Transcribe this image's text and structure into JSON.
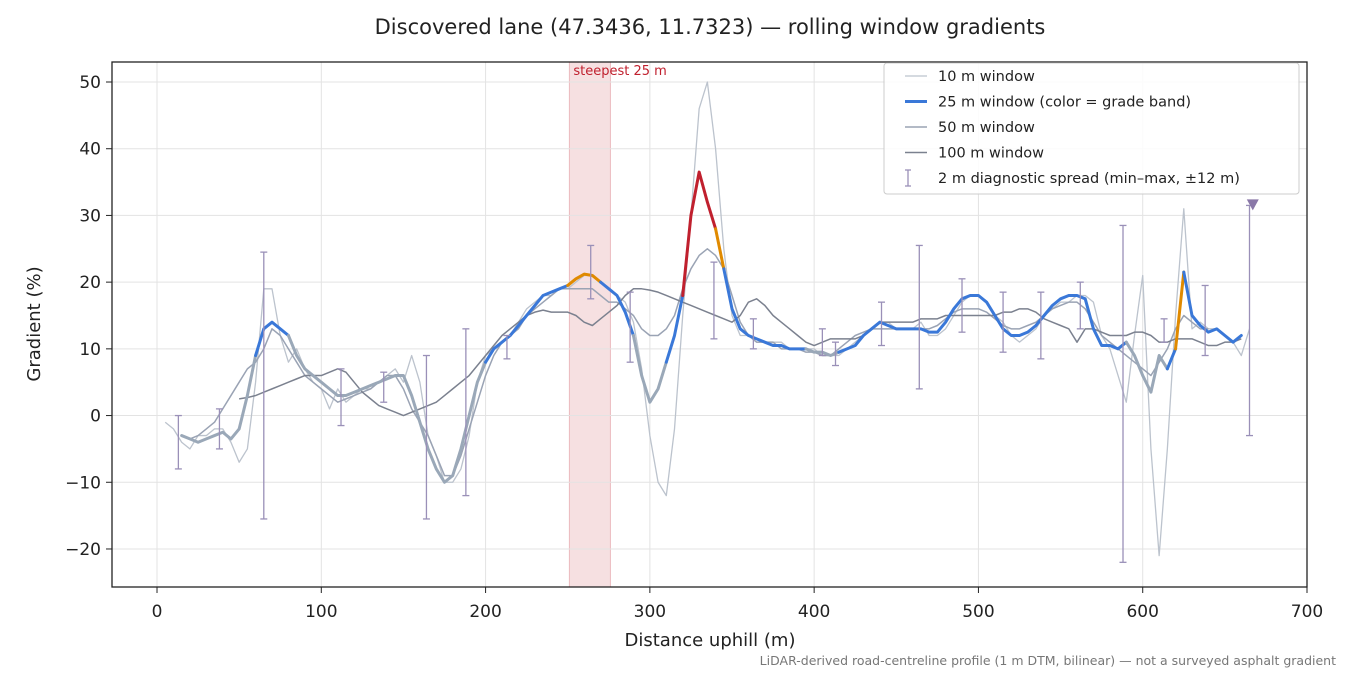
{
  "chart_data": {
    "type": "line",
    "title": "Discovered lane (47.3436, 11.7323) — rolling window gradients",
    "xlabel": "Distance uphill (m)",
    "ylabel": "Gradient (%)",
    "note": "LiDAR-derived road-centreline profile (1 m DTM, bilinear) — not a surveyed asphalt gradient",
    "xlim": [
      -27.4,
      700
    ],
    "ylim": [
      -25.7,
      53
    ],
    "xticks": [
      0,
      100,
      200,
      300,
      400,
      500,
      600,
      700
    ],
    "yticks": [
      {
        "value": -20,
        "label": "−20"
      },
      {
        "value": -10,
        "label": "−10"
      },
      0,
      10,
      20,
      30,
      40,
      50
    ],
    "grid": true,
    "legend": "upper right",
    "x": [
      5,
      10,
      15,
      20,
      25,
      30,
      35,
      40,
      45,
      50,
      55,
      60,
      65,
      70,
      75,
      80,
      85,
      90,
      95,
      100,
      105,
      110,
      115,
      120,
      125,
      130,
      135,
      140,
      145,
      150,
      155,
      160,
      165,
      170,
      175,
      180,
      185,
      190,
      195,
      200,
      205,
      210,
      215,
      220,
      225,
      230,
      235,
      240,
      245,
      250,
      255,
      260,
      265,
      270,
      275,
      280,
      285,
      290,
      295,
      300,
      305,
      310,
      315,
      320,
      325,
      330,
      335,
      340,
      345,
      350,
      355,
      360,
      365,
      370,
      375,
      380,
      385,
      390,
      395,
      400,
      405,
      410,
      415,
      420,
      425,
      430,
      435,
      440,
      445,
      450,
      455,
      460,
      465,
      470,
      475,
      480,
      485,
      490,
      495,
      500,
      505,
      510,
      515,
      520,
      525,
      530,
      535,
      540,
      545,
      550,
      555,
      560,
      565,
      570,
      575,
      580,
      585,
      590,
      595,
      600,
      605,
      610,
      615,
      620,
      625,
      630,
      635,
      640,
      645,
      650,
      655,
      660,
      665
    ],
    "series": [
      {
        "name": "10 m window",
        "color": "#bcc3cd",
        "width": 1.3,
        "values": [
          -1,
          -2,
          -4,
          -5,
          -3,
          -3,
          -2,
          -2,
          -4,
          -7,
          -5,
          5,
          19,
          19,
          12,
          8,
          10,
          7,
          5,
          4,
          1,
          4,
          2,
          3,
          4,
          4,
          5,
          6,
          7,
          5,
          9,
          5,
          -3,
          -6,
          -10,
          -10,
          -8,
          -3,
          5,
          9,
          10,
          11,
          12,
          14,
          16,
          17,
          18,
          18,
          19,
          19,
          20,
          21,
          21,
          20,
          19,
          18,
          17,
          14,
          7,
          -3,
          -10,
          -12,
          -2,
          15,
          30,
          46,
          50,
          40,
          25,
          15,
          12,
          12,
          11,
          11,
          11,
          11,
          10,
          10,
          10,
          10,
          9,
          9,
          9,
          10,
          11,
          12,
          13,
          14,
          14,
          13,
          13,
          13,
          14,
          12,
          12,
          13,
          15,
          17,
          18,
          18,
          17,
          15,
          14,
          12,
          11,
          12,
          13,
          15,
          16,
          17,
          17,
          18,
          18,
          17,
          12,
          10,
          6,
          2,
          12,
          21,
          -5,
          -21,
          -5,
          15,
          31,
          13,
          14,
          13,
          13,
          12,
          11,
          9,
          13
        ]
      },
      {
        "name": "25 m window (color = grade band)",
        "color": "#3a78d8",
        "width": 3,
        "banded": true,
        "values": [
          null,
          null,
          -3,
          -3.5,
          -4,
          -3.5,
          -3,
          -2.5,
          -3.5,
          -2,
          3,
          9,
          13,
          14,
          13,
          12,
          9,
          7,
          6,
          5,
          4,
          3,
          3,
          3.5,
          4,
          4.5,
          5,
          5.5,
          6,
          6,
          3,
          -1,
          -5,
          -8,
          -10,
          -9,
          -5,
          0,
          5,
          8,
          10,
          11,
          12,
          13.5,
          15,
          16.5,
          18,
          18.5,
          19,
          19.5,
          20.5,
          21.2,
          21,
          20,
          19,
          18,
          15.5,
          12,
          6,
          2,
          4,
          8,
          12,
          18,
          30,
          36.5,
          32,
          28,
          22,
          16,
          13,
          12,
          11.5,
          11,
          10.5,
          10.5,
          10,
          10,
          10,
          9.5,
          9.5,
          9,
          9.5,
          10,
          10.5,
          12,
          13,
          14,
          13.5,
          13,
          13,
          13,
          13,
          12.5,
          12.5,
          14,
          16,
          17.5,
          18,
          18,
          17,
          15,
          13,
          12,
          12,
          12.5,
          13.5,
          15,
          16.5,
          17.5,
          18,
          18,
          17.5,
          13,
          10.5,
          10.5,
          10,
          11,
          9,
          6,
          3.5,
          9,
          7,
          10,
          21.5,
          15,
          13.5,
          12.5,
          13,
          12,
          11,
          12,
          null
        ]
      },
      {
        "name": "50 m window",
        "color": "#9aa3b4",
        "width": 1.5,
        "values": [
          null,
          null,
          -3,
          -3.5,
          -3,
          -2,
          -1,
          1,
          3,
          5,
          7,
          8,
          10,
          13,
          12,
          10,
          8,
          6,
          5,
          4,
          3,
          2,
          2.5,
          3,
          3.5,
          4,
          5,
          6,
          6,
          4,
          1,
          -1,
          -3,
          -6,
          -9,
          -9,
          -6,
          -2,
          2,
          6,
          9,
          11,
          12,
          13,
          15,
          16,
          17,
          18,
          19,
          19,
          19,
          19,
          19,
          18,
          17,
          17,
          16,
          15,
          13,
          12,
          12,
          13,
          15,
          19,
          22,
          24,
          25,
          24,
          22,
          18,
          14,
          12,
          11,
          11,
          11,
          10,
          10,
          10,
          9.5,
          9.5,
          9,
          9,
          10,
          11,
          12,
          12.5,
          13,
          13,
          13,
          13,
          13,
          13,
          13,
          13,
          13.5,
          14.5,
          15.5,
          16,
          16,
          16,
          15.5,
          14.5,
          13.5,
          13,
          13,
          13.5,
          14,
          15,
          16,
          16.5,
          17,
          17,
          16,
          14,
          12,
          11,
          10,
          9,
          8,
          7,
          6,
          8,
          10,
          13,
          15,
          14,
          13,
          13,
          null,
          null,
          null,
          null,
          null
        ]
      },
      {
        "name": "100 m window",
        "color": "#7b818f",
        "width": 1.5,
        "values": [
          null,
          null,
          null,
          null,
          null,
          null,
          null,
          null,
          null,
          2.5,
          2.7,
          3,
          3.5,
          4,
          4.5,
          5,
          5.5,
          6,
          6,
          6,
          6.5,
          7,
          6.5,
          5,
          3.5,
          2.5,
          1.5,
          1,
          0.5,
          0,
          0.5,
          1,
          1.5,
          2,
          3,
          4,
          5,
          6,
          7.5,
          9,
          10.5,
          12,
          13,
          14,
          15,
          15.5,
          15.8,
          15.5,
          15.5,
          15.5,
          15,
          14,
          13.5,
          14.5,
          15.5,
          16.5,
          18,
          19,
          19,
          18.8,
          18.5,
          18,
          17.5,
          17,
          16.5,
          16,
          15.5,
          15,
          14.5,
          14,
          15,
          17,
          17.5,
          16.5,
          15,
          14,
          13,
          12,
          11,
          10.5,
          11,
          11.5,
          11.5,
          11.5,
          11.5,
          12,
          13,
          14,
          14,
          14,
          14,
          14,
          14.5,
          14.5,
          14.5,
          15,
          15,
          15,
          15,
          15,
          15,
          15,
          15.5,
          15.5,
          16,
          16,
          15.5,
          14.5,
          14,
          13.5,
          13,
          11,
          13,
          13,
          12.5,
          12,
          12,
          12,
          12.5,
          12.5,
          12,
          11,
          11,
          11.5,
          11.5,
          11.5,
          11,
          10.5,
          10.5,
          11,
          11,
          11.5,
          null
        ]
      }
    ],
    "grade_bands": {
      "thresholds": [
        10,
        20,
        25
      ],
      "colors": [
        "#9aa8b8",
        "#3a78d8",
        "#e08a00",
        "#c0202e"
      ]
    },
    "spread": {
      "name": "2 m diagnostic spread (min–max, ±12 m)",
      "color": "#9a90b8",
      "x": [
        13,
        38,
        65,
        112,
        138,
        164,
        188,
        213,
        264,
        288,
        339,
        363,
        405,
        413,
        441,
        464,
        490,
        515,
        538,
        562,
        588,
        613,
        638,
        665
      ],
      "low": [
        -8,
        -5,
        -15.5,
        -1.5,
        2,
        -15.5,
        -12,
        8.5,
        17.5,
        8,
        11.5,
        10,
        9,
        7.5,
        10.5,
        4,
        12.5,
        9.5,
        8.5,
        13,
        -22,
        11,
        9,
        -3
      ],
      "high": [
        0,
        1,
        24.5,
        7,
        6.5,
        9,
        13,
        12,
        25.5,
        18.5,
        23,
        14.5,
        13,
        11,
        17,
        25.5,
        20.5,
        18.5,
        18.5,
        20,
        28.5,
        14.5,
        19.5,
        31.5
      ]
    },
    "marker": {
      "x": 667,
      "y": 31.5,
      "color": "#8a78a8"
    },
    "highlight": {
      "x0": 251,
      "x1": 276,
      "label": "steepest 25 m",
      "color": "#c0202e"
    }
  }
}
